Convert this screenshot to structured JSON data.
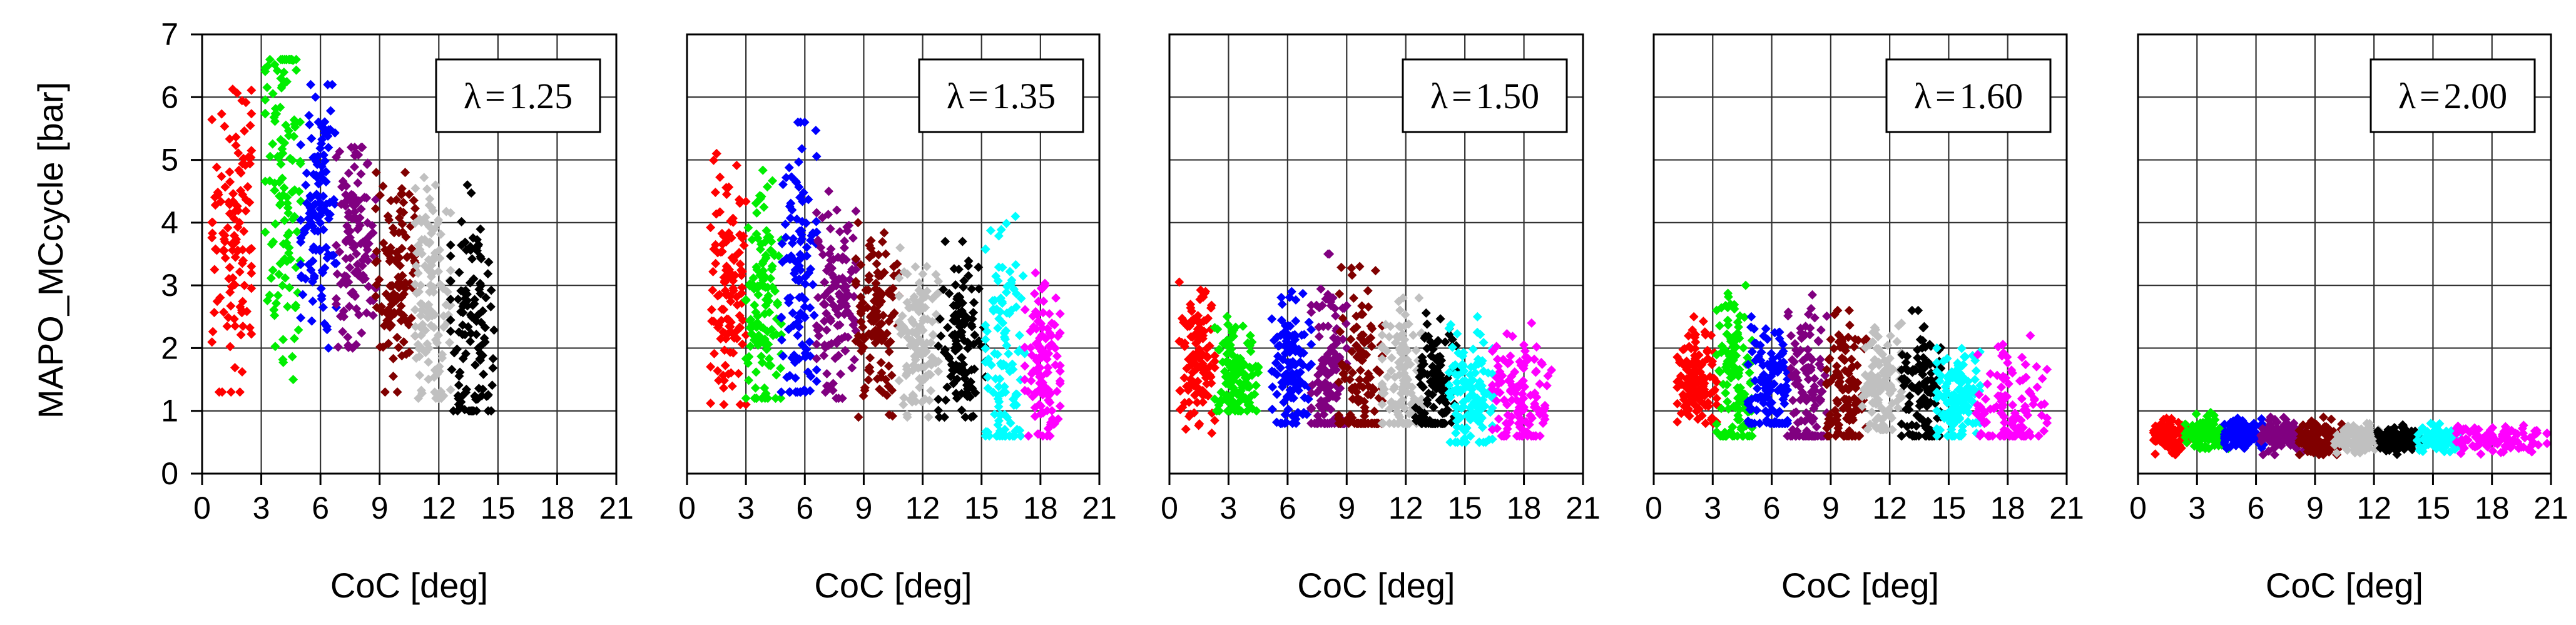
{
  "chart_data": {
    "type": "scatter",
    "ylabel": "MAPO_MCcycle [bar]",
    "ylim": [
      0,
      7
    ],
    "yticks": [
      0,
      1,
      2,
      3,
      4,
      5,
      6,
      7
    ],
    "xlim": [
      0,
      21
    ],
    "xticks": [
      0,
      3,
      6,
      9,
      12,
      15,
      18,
      21
    ],
    "grid": true,
    "colors": {
      "red": "#ff0000",
      "green": "#00ee00",
      "blue": "#0000ff",
      "purple": "#800080",
      "maroon": "#800000",
      "gray": "#c0c0c0",
      "black": "#000000",
      "cyan": "#00ffff",
      "magenta": "#ff00ff"
    },
    "panels": [
      {
        "id": "lambda-1-25",
        "xlabel": "CoC [deg]",
        "lambda_symbol": "λ",
        "lambda_eq": "=",
        "lambda_value": "1.25",
        "series": [
          {
            "color": "red",
            "x_range": [
              0.5,
              2.5
            ],
            "y_range": [
              1.3,
              6.5
            ],
            "y_mean": 3.9,
            "n": 120
          },
          {
            "color": "green",
            "x_range": [
              3.2,
              5.0
            ],
            "y_range": [
              1.5,
              6.6
            ],
            "y_mean": 4.7,
            "n": 120
          },
          {
            "color": "blue",
            "x_range": [
              5.0,
              6.8
            ],
            "y_range": [
              2.0,
              6.2
            ],
            "y_mean": 4.2,
            "n": 120
          },
          {
            "color": "purple",
            "x_range": [
              6.8,
              8.8
            ],
            "y_range": [
              2.0,
              5.2
            ],
            "y_mean": 3.8,
            "n": 120
          },
          {
            "color": "maroon",
            "x_range": [
              8.8,
              10.8
            ],
            "y_range": [
              1.3,
              4.8
            ],
            "y_mean": 3.1,
            "n": 120
          },
          {
            "color": "gray",
            "x_range": [
              10.8,
              12.6
            ],
            "y_range": [
              1.2,
              4.8
            ],
            "y_mean": 2.7,
            "n": 120
          },
          {
            "color": "black",
            "x_range": [
              12.6,
              14.8
            ],
            "y_range": [
              1.0,
              4.6
            ],
            "y_mean": 2.3,
            "n": 120
          }
        ]
      },
      {
        "id": "lambda-1-35",
        "xlabel": "CoC [deg]",
        "lambda_symbol": "λ",
        "lambda_eq": "=",
        "lambda_value": "1.35",
        "series": [
          {
            "color": "red",
            "x_range": [
              1.2,
              3.0
            ],
            "y_range": [
              1.1,
              5.1
            ],
            "y_mean": 3.0,
            "n": 120
          },
          {
            "color": "green",
            "x_range": [
              3.0,
              4.8
            ],
            "y_range": [
              1.2,
              5.0
            ],
            "y_mean": 2.7,
            "n": 120
          },
          {
            "color": "blue",
            "x_range": [
              4.8,
              6.6
            ],
            "y_range": [
              1.3,
              5.6
            ],
            "y_mean": 2.9,
            "n": 120
          },
          {
            "color": "purple",
            "x_range": [
              6.6,
              8.6
            ],
            "y_range": [
              1.2,
              4.5
            ],
            "y_mean": 2.8,
            "n": 120
          },
          {
            "color": "maroon",
            "x_range": [
              8.6,
              10.8
            ],
            "y_range": [
              0.9,
              4.0
            ],
            "y_mean": 2.5,
            "n": 120
          },
          {
            "color": "gray",
            "x_range": [
              10.8,
              12.8
            ],
            "y_range": [
              0.9,
              3.6
            ],
            "y_mean": 2.2,
            "n": 120
          },
          {
            "color": "black",
            "x_range": [
              12.8,
              15.2
            ],
            "y_range": [
              0.9,
              3.7
            ],
            "y_mean": 2.1,
            "n": 120
          },
          {
            "color": "cyan",
            "x_range": [
              15.2,
              17.2
            ],
            "y_range": [
              0.6,
              4.1
            ],
            "y_mean": 1.9,
            "n": 120
          },
          {
            "color": "magenta",
            "x_range": [
              17.2,
              19.0
            ],
            "y_range": [
              0.6,
              3.2
            ],
            "y_mean": 1.7,
            "n": 120
          }
        ]
      },
      {
        "id": "lambda-1-50",
        "xlabel": "CoC [deg]",
        "lambda_symbol": "λ",
        "lambda_eq": "=",
        "lambda_value": "1.50",
        "series": [
          {
            "color": "red",
            "x_range": [
              0.5,
              2.3
            ],
            "y_range": [
              0.6,
              3.1
            ],
            "y_mean": 1.9,
            "n": 120
          },
          {
            "color": "green",
            "x_range": [
              2.3,
              4.5
            ],
            "y_range": [
              1.0,
              2.6
            ],
            "y_mean": 1.6,
            "n": 120
          },
          {
            "color": "blue",
            "x_range": [
              5.2,
              7.2
            ],
            "y_range": [
              0.8,
              2.9
            ],
            "y_mean": 1.7,
            "n": 120
          },
          {
            "color": "purple",
            "x_range": [
              7.2,
              9.0
            ],
            "y_range": [
              0.8,
              3.5
            ],
            "y_mean": 1.6,
            "n": 120
          },
          {
            "color": "maroon",
            "x_range": [
              8.6,
              10.8
            ],
            "y_range": [
              0.8,
              3.3
            ],
            "y_mean": 1.4,
            "n": 120
          },
          {
            "color": "gray",
            "x_range": [
              10.8,
              12.8
            ],
            "y_range": [
              0.8,
              2.8
            ],
            "y_mean": 1.5,
            "n": 120
          },
          {
            "color": "black",
            "x_range": [
              12.5,
              14.6
            ],
            "y_range": [
              0.8,
              2.8
            ],
            "y_mean": 1.4,
            "n": 120
          },
          {
            "color": "cyan",
            "x_range": [
              14.2,
              16.4
            ],
            "y_range": [
              0.5,
              2.5
            ],
            "y_mean": 1.3,
            "n": 120
          },
          {
            "color": "magenta",
            "x_range": [
              16.4,
              19.4
            ],
            "y_range": [
              0.6,
              2.4
            ],
            "y_mean": 1.2,
            "n": 120
          }
        ]
      },
      {
        "id": "lambda-1-60",
        "xlabel": "CoC [deg]",
        "lambda_symbol": "λ",
        "lambda_eq": "=",
        "lambda_value": "1.60",
        "series": [
          {
            "color": "red",
            "x_range": [
              1.2,
              3.2
            ],
            "y_range": [
              0.8,
              2.5
            ],
            "y_mean": 1.5,
            "n": 120
          },
          {
            "color": "green",
            "x_range": [
              3.2,
              5.0
            ],
            "y_range": [
              0.6,
              3.0
            ],
            "y_mean": 1.5,
            "n": 120
          },
          {
            "color": "blue",
            "x_range": [
              4.8,
              6.8
            ],
            "y_range": [
              0.8,
              2.5
            ],
            "y_mean": 1.4,
            "n": 120
          },
          {
            "color": "purple",
            "x_range": [
              6.8,
              8.8
            ],
            "y_range": [
              0.6,
              3.0
            ],
            "y_mean": 1.3,
            "n": 120
          },
          {
            "color": "maroon",
            "x_range": [
              8.8,
              10.8
            ],
            "y_range": [
              0.6,
              2.6
            ],
            "y_mean": 1.3,
            "n": 120
          },
          {
            "color": "gray",
            "x_range": [
              10.6,
              12.6
            ],
            "y_range": [
              0.7,
              2.4
            ],
            "y_mean": 1.4,
            "n": 120
          },
          {
            "color": "black",
            "x_range": [
              12.6,
              14.6
            ],
            "y_range": [
              0.6,
              2.6
            ],
            "y_mean": 1.3,
            "n": 120
          },
          {
            "color": "cyan",
            "x_range": [
              14.4,
              16.6
            ],
            "y_range": [
              0.6,
              2.0
            ],
            "y_mean": 1.2,
            "n": 120
          },
          {
            "color": "magenta",
            "x_range": [
              16.4,
              20.0
            ],
            "y_range": [
              0.6,
              2.2
            ],
            "y_mean": 1.0,
            "n": 120
          }
        ]
      },
      {
        "id": "lambda-2-00",
        "xlabel": "CoC [deg]",
        "lambda_symbol": "λ",
        "lambda_eq": "=",
        "lambda_value": "2.00",
        "series": [
          {
            "color": "red",
            "x_range": [
              0.8,
              2.6
            ],
            "y_range": [
              0.3,
              0.9
            ],
            "y_mean": 0.6,
            "n": 100
          },
          {
            "color": "green",
            "x_range": [
              2.4,
              4.6
            ],
            "y_range": [
              0.4,
              1.0
            ],
            "y_mean": 0.65,
            "n": 100
          },
          {
            "color": "blue",
            "x_range": [
              4.4,
              6.4
            ],
            "y_range": [
              0.4,
              0.9
            ],
            "y_mean": 0.65,
            "n": 100
          },
          {
            "color": "purple",
            "x_range": [
              6.2,
              8.4
            ],
            "y_range": [
              0.3,
              0.9
            ],
            "y_mean": 0.6,
            "n": 100
          },
          {
            "color": "maroon",
            "x_range": [
              8.2,
              10.4
            ],
            "y_range": [
              0.3,
              0.9
            ],
            "y_mean": 0.55,
            "n": 100
          },
          {
            "color": "gray",
            "x_range": [
              10.0,
              12.4
            ],
            "y_range": [
              0.3,
              0.8
            ],
            "y_mean": 0.55,
            "n": 100
          },
          {
            "color": "black",
            "x_range": [
              12.2,
              14.4
            ],
            "y_range": [
              0.3,
              0.8
            ],
            "y_mean": 0.55,
            "n": 100
          },
          {
            "color": "cyan",
            "x_range": [
              14.2,
              16.4
            ],
            "y_range": [
              0.3,
              0.8
            ],
            "y_mean": 0.55,
            "n": 100
          },
          {
            "color": "magenta",
            "x_range": [
              16.2,
              20.8
            ],
            "y_range": [
              0.3,
              0.8
            ],
            "y_mean": 0.55,
            "n": 100
          }
        ]
      }
    ]
  }
}
